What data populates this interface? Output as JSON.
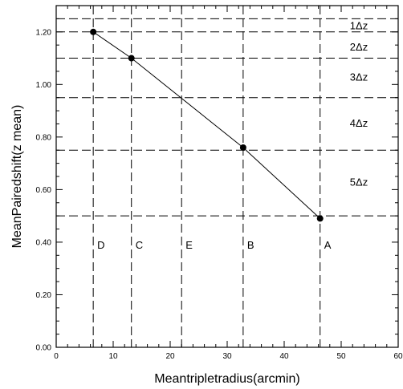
{
  "chart_data": {
    "type": "line",
    "title": "",
    "xlabel": "Meantripletradius(arcmin)",
    "ylabel": "MeanPairedshift(z   mean)",
    "xlim": [
      0,
      60
    ],
    "ylim": [
      0,
      1.3
    ],
    "x_ticks": [
      0,
      10,
      20,
      30,
      40,
      50,
      60
    ],
    "x_tick_labels": [
      "0",
      "10",
      "20",
      "30",
      "40",
      "50",
      "60"
    ],
    "y_ticks": [
      0.0,
      0.2,
      0.4,
      0.6,
      0.8,
      1.0,
      1.2
    ],
    "y_tick_labels": [
      "0.00",
      "0.20",
      "0.40",
      "0.60",
      "0.80",
      "1.00",
      "1.20"
    ],
    "grid": false,
    "series": [
      {
        "x": [
          6.5,
          13.2,
          32.8,
          46.3
        ],
        "y": [
          1.2,
          1.1,
          0.76,
          0.49
        ]
      }
    ],
    "horizontal_lines": [
      1.25,
      1.2,
      1.1,
      0.95,
      0.75,
      0.5
    ],
    "vertical_lines": [
      {
        "x": 6.5,
        "label": "D"
      },
      {
        "x": 13.2,
        "label": "C"
      },
      {
        "x": 22.0,
        "label": "E"
      },
      {
        "x": 32.8,
        "label": "B"
      },
      {
        "x": 46.3,
        "label": "A"
      }
    ],
    "region_labels": [
      {
        "text": "1Δz",
        "y": 1.225
      },
      {
        "text": "2Δz",
        "y": 1.145
      },
      {
        "text": "3Δz",
        "y": 1.03
      },
      {
        "text": "4Δz",
        "y": 0.855
      },
      {
        "text": "5Δz",
        "y": 0.63
      }
    ],
    "point_label_y": 0.39
  }
}
